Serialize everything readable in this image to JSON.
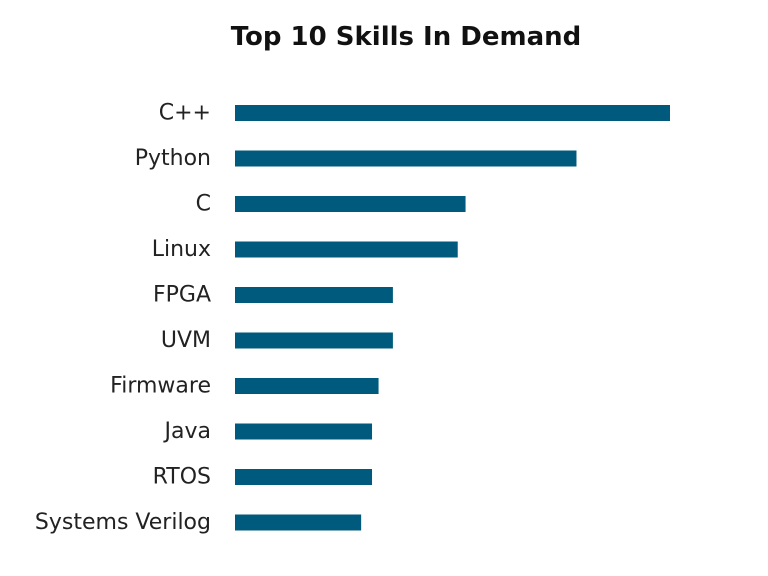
{
  "chart_data": {
    "type": "bar",
    "orientation": "horizontal",
    "title": "Top 10 Skills In Demand",
    "xlabel": "",
    "ylabel": "",
    "categories": [
      "C++",
      "Python",
      "C",
      "Linux",
      "FPGA",
      "UVM",
      "Firmware",
      "Java",
      "RTOS",
      "Systems Verilog"
    ],
    "values": [
      100,
      78.5,
      53,
      51.2,
      36.3,
      36.3,
      33,
      31.5,
      31.5,
      29
    ],
    "xlim": [
      0,
      100
    ],
    "grid": false,
    "legend": "none",
    "bar_color": "#005A7D"
  }
}
